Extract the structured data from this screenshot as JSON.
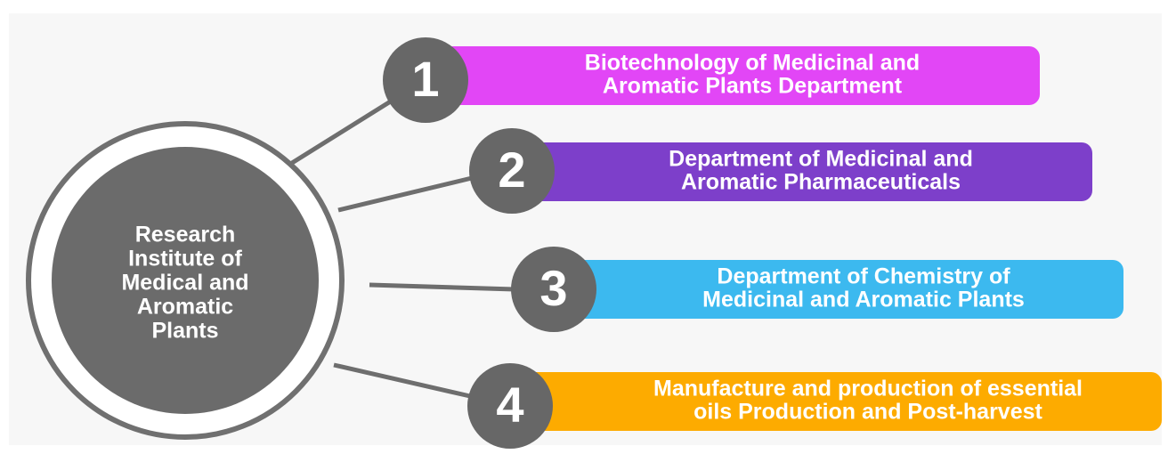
{
  "center": {
    "lines": [
      "Research",
      "Institute of",
      "Medical and",
      "Aromatic",
      "Plants"
    ]
  },
  "items": [
    {
      "number": "1",
      "lines": [
        "Biotechnology of Medicinal and",
        "Aromatic Plants Department"
      ]
    },
    {
      "number": "2",
      "lines": [
        "Department of Medicinal and",
        "Aromatic Pharmaceuticals"
      ]
    },
    {
      "number": "3",
      "lines": [
        "Department of Chemistry of",
        "Medicinal and Aromatic Plants"
      ]
    },
    {
      "number": "4",
      "lines": [
        "Manufacture and production of essential",
        "oils Production and Post-harvest"
      ]
    }
  ]
}
